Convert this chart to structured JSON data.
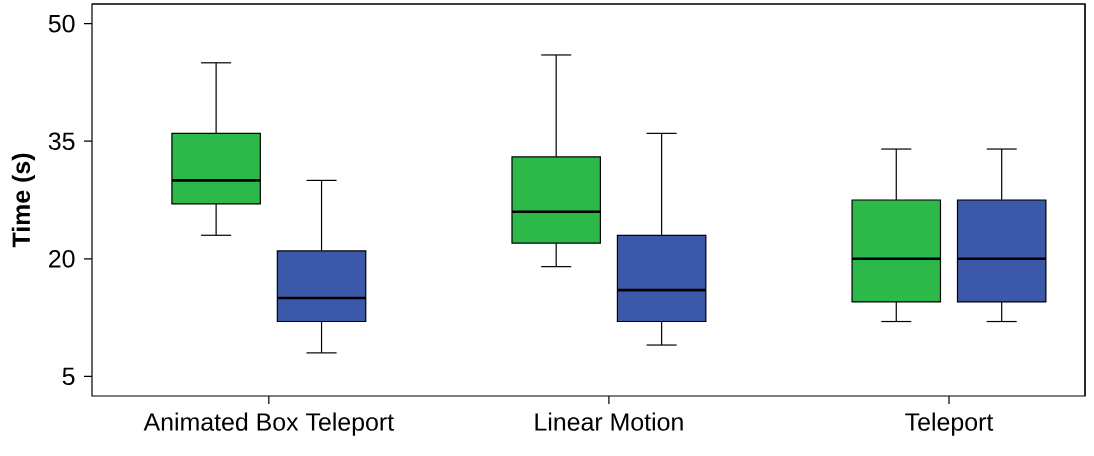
{
  "chart_data": {
    "type": "box",
    "ylabel": "Time (s)",
    "categories": [
      "Animated Box Teleport",
      "Linear Motion",
      "Teleport"
    ],
    "ylim": [
      2.5,
      52.5
    ],
    "yticks": [
      5,
      20,
      35,
      50
    ],
    "grid": false,
    "series": [
      {
        "color": "#2db84a",
        "boxes": [
          {
            "low": 23,
            "q1": 27,
            "median": 30,
            "q3": 36,
            "high": 45
          },
          {
            "low": 19,
            "q1": 22,
            "median": 26,
            "q3": 33,
            "high": 46
          },
          {
            "low": 12,
            "q1": 14.5,
            "median": 20,
            "q3": 27.5,
            "high": 34
          }
        ]
      },
      {
        "color": "#3c58a8",
        "boxes": [
          {
            "low": 8,
            "q1": 12,
            "median": 15,
            "q3": 21,
            "high": 30
          },
          {
            "low": 9,
            "q1": 12,
            "median": 16,
            "q3": 23,
            "high": 36
          },
          {
            "low": 12,
            "q1": 14.5,
            "median": 20,
            "q3": 27.5,
            "high": 34
          }
        ]
      }
    ]
  }
}
